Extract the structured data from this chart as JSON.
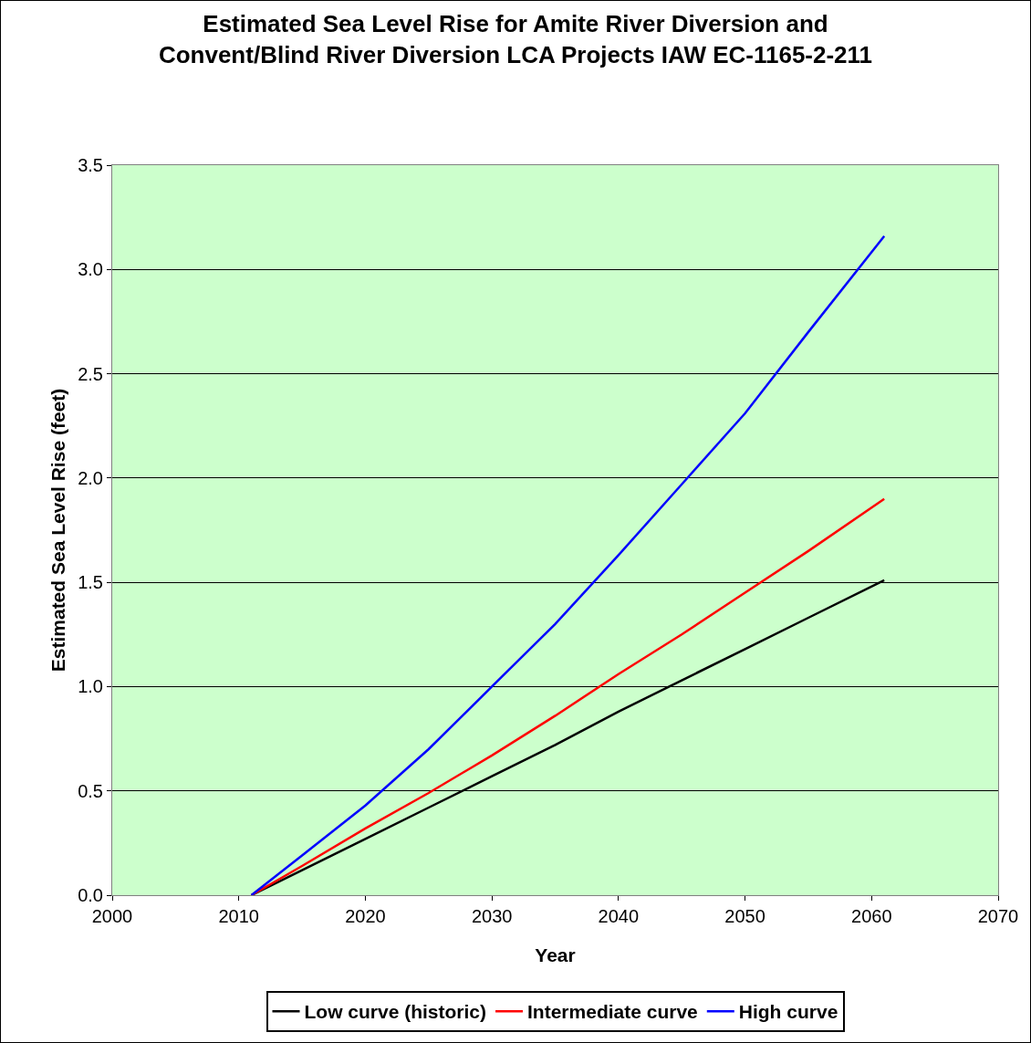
{
  "chart_data": {
    "type": "line",
    "title": "Estimated Sea Level Rise for Amite River Diversion and\nConvent/Blind River Diversion LCA Projects IAW EC-1165-2-211",
    "xlabel": "Year",
    "ylabel": "Estimated Sea Level Rise (feet)",
    "x": [
      2011,
      2015,
      2020,
      2025,
      2030,
      2035,
      2040,
      2045,
      2050,
      2055,
      2061
    ],
    "series": [
      {
        "name": "Low curve (historic)",
        "color": "#000000",
        "values": [
          0,
          0.12,
          0.27,
          0.42,
          0.57,
          0.72,
          0.88,
          1.03,
          1.18,
          1.33,
          1.51
        ]
      },
      {
        "name": "Intermediate curve",
        "color": "#ff0000",
        "values": [
          0,
          0.14,
          0.32,
          0.49,
          0.67,
          0.86,
          1.06,
          1.25,
          1.45,
          1.65,
          1.9
        ]
      },
      {
        "name": "High curve",
        "color": "#0000ff",
        "values": [
          0,
          0.19,
          0.43,
          0.7,
          1.0,
          1.3,
          1.63,
          1.97,
          2.31,
          2.7,
          3.16
        ]
      }
    ],
    "xlim": [
      2000,
      2070
    ],
    "xticks": [
      2000,
      2010,
      2020,
      2030,
      2040,
      2050,
      2060,
      2070
    ],
    "ylim": [
      0,
      3.5
    ],
    "yticks": [
      {
        "value": 0,
        "label": "0.0"
      },
      {
        "value": 0.5,
        "label": "0.5"
      },
      {
        "value": 1,
        "label": "1.0"
      },
      {
        "value": 1.5,
        "label": "1.5"
      },
      {
        "value": 2,
        "label": "2.0"
      },
      {
        "value": 2.5,
        "label": "2.5"
      },
      {
        "value": 3,
        "label": "3.0"
      },
      {
        "value": 3.5,
        "label": "3.5"
      }
    ],
    "grid": "y",
    "legend": "bottom"
  }
}
